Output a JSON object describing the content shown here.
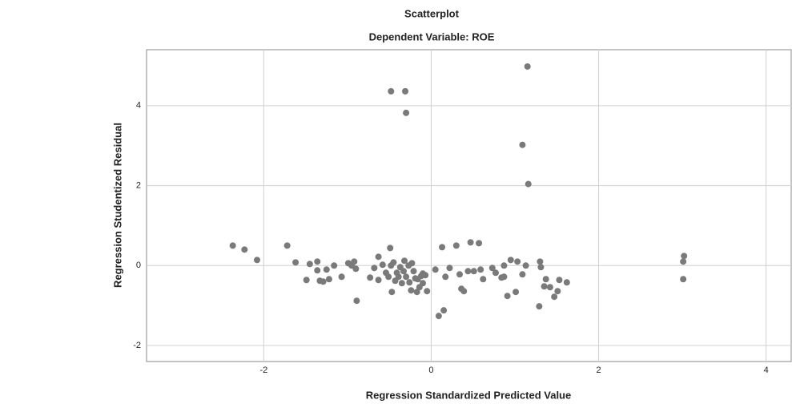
{
  "chart_data": {
    "type": "scatter",
    "title": "Scatterplot",
    "subtitle": "Dependent Variable: ROE",
    "x_label": "Regression Standardized Predicted Value",
    "y_label": "Regression Studentized Residual",
    "color": "#7a7a7a",
    "grid": true,
    "xlim": [
      -3.4,
      4.3
    ],
    "ylim": [
      -2.4,
      5.4
    ],
    "xticks": [
      -2,
      0,
      2,
      4
    ],
    "yticks": [
      -2,
      0,
      2,
      4
    ],
    "x": [
      -2.37,
      -2.23,
      -2.08,
      -1.72,
      -1.62,
      -1.49,
      -1.45,
      -1.36,
      -1.36,
      -1.33,
      -1.29,
      -1.25,
      -1.22,
      -1.16,
      -1.07,
      -0.99,
      -0.95,
      -0.92,
      -0.89,
      -0.9,
      -0.73,
      -0.68,
      -0.63,
      -0.63,
      -0.58,
      -0.54,
      -0.51,
      -0.49,
      -0.48,
      -0.48,
      -0.47,
      -0.45,
      -0.43,
      -0.41,
      -0.39,
      -0.37,
      -0.35,
      -0.33,
      -0.32,
      -0.31,
      -0.3,
      -0.3,
      -0.27,
      -0.26,
      -0.24,
      -0.23,
      -0.21,
      -0.19,
      -0.17,
      -0.16,
      -0.14,
      -0.12,
      -0.1,
      -0.1,
      -0.07,
      -0.05,
      0.05,
      0.09,
      0.15,
      0.13,
      0.17,
      0.22,
      0.3,
      0.34,
      0.36,
      0.39,
      0.44,
      0.47,
      0.51,
      0.57,
      0.59,
      0.62,
      0.73,
      0.77,
      0.84,
      0.87,
      0.91,
      0.95,
      1.01,
      1.09,
      1.13,
      1.15,
      1.09,
      1.16,
      1.3,
      1.31,
      1.29,
      1.35,
      1.37,
      1.42,
      1.47,
      1.51,
      1.53,
      1.62,
      1.03,
      3.02,
      3.01,
      3.01,
      0.87
    ],
    "values": [
      0.5,
      0.4,
      0.14,
      0.5,
      0.08,
      -0.36,
      0.04,
      0.1,
      -0.12,
      -0.38,
      -0.4,
      -0.1,
      -0.34,
      0,
      -0.28,
      0.06,
      0,
      0.1,
      -0.88,
      -0.08,
      -0.3,
      -0.06,
      0.22,
      -0.36,
      0.02,
      -0.18,
      -0.28,
      0.44,
      4.36,
      0,
      -0.66,
      0.08,
      -0.38,
      -0.18,
      -0.28,
      -0.04,
      -0.44,
      -0.14,
      0.12,
      4.36,
      3.82,
      -0.28,
      0,
      -0.42,
      -0.62,
      0.06,
      -0.14,
      -0.32,
      -0.66,
      -0.34,
      -0.54,
      -0.26,
      -0.44,
      -0.2,
      -0.24,
      -0.64,
      -0.1,
      -1.26,
      -1.12,
      0.46,
      -0.28,
      -0.06,
      0.5,
      -0.22,
      -0.58,
      -0.64,
      -0.14,
      0.58,
      -0.14,
      0.56,
      -0.1,
      -0.34,
      -0.06,
      -0.18,
      -0.3,
      -0.28,
      -0.76,
      0.14,
      -0.66,
      -0.22,
      0,
      4.98,
      3.02,
      2.04,
      0.1,
      -0.04,
      -1.02,
      -0.52,
      -0.34,
      -0.54,
      -0.78,
      -0.64,
      -0.36,
      -0.42,
      0.1,
      0.24,
      0.1,
      -0.34,
      0
    ]
  }
}
